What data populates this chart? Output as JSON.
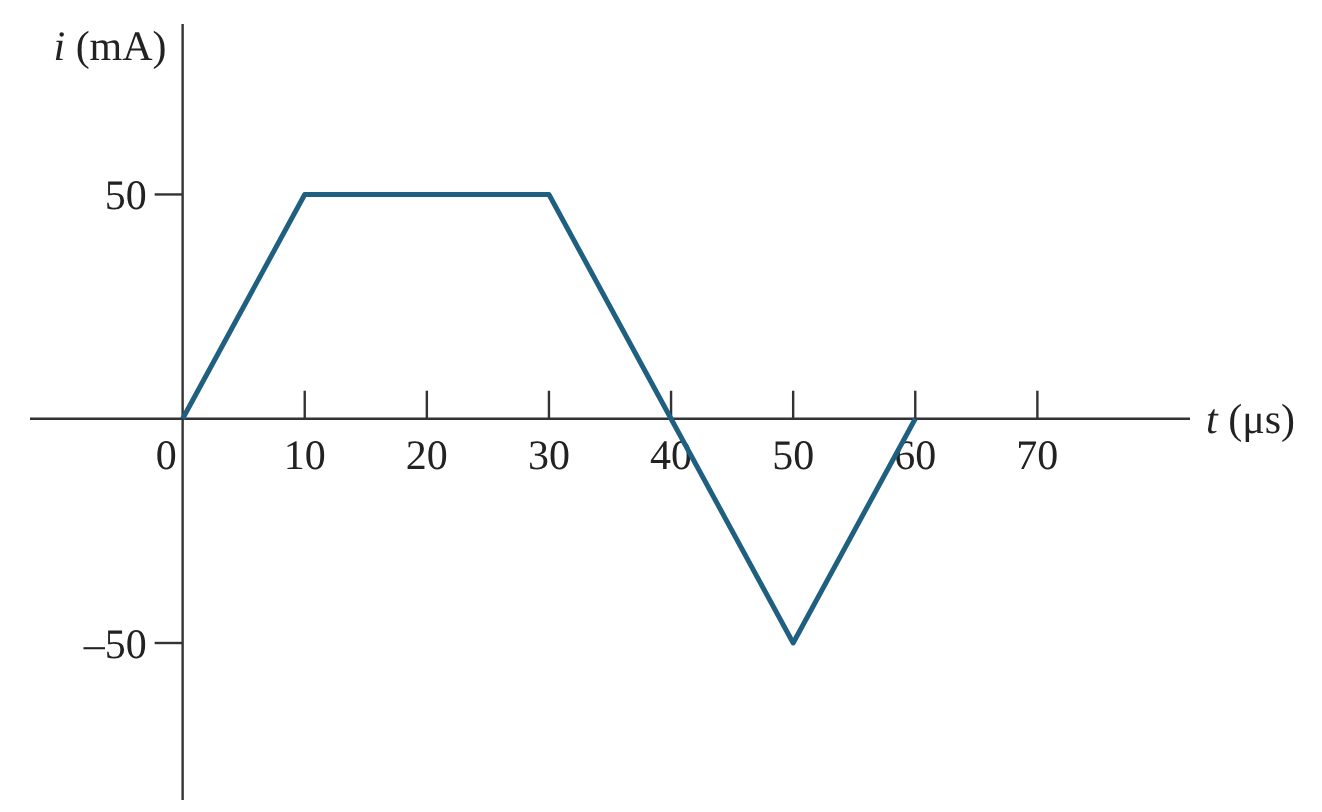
{
  "chart_data": {
    "type": "line",
    "xlabel": "t (μs)",
    "ylabel": "i (mA)",
    "x": [
      0,
      10,
      30,
      40,
      50,
      60
    ],
    "series": [
      {
        "color": "#1f5f7f",
        "values": [
          0,
          50,
          50,
          0,
          -50,
          0
        ]
      }
    ],
    "xlim": [
      -12.5,
      82.5
    ],
    "ylim": [
      -85,
      88
    ],
    "xticks": [
      0,
      10,
      20,
      30,
      40,
      50,
      60,
      70
    ],
    "yticks": [
      50,
      {
        "value": -50,
        "label": "–50"
      }
    ],
    "grid": false,
    "marker": "none",
    "line_style": "solid"
  }
}
